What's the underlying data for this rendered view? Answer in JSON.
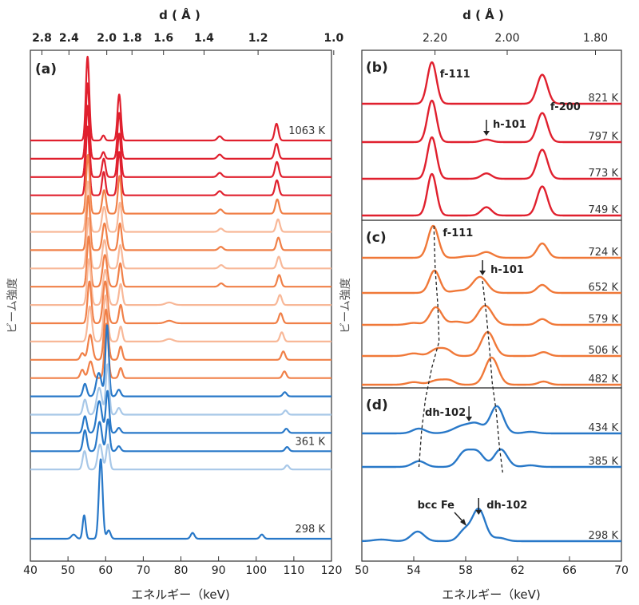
{
  "chart_data": [
    {
      "panel": "(a)",
      "type": "line",
      "xlabel": "エネルギー（keV)",
      "ylabel": "ビーム強度",
      "top_axis_label": "d ( Å )",
      "top_ticks": [
        "2.8",
        "2.4",
        "2.0",
        "1.8",
        "1.6",
        "1.4",
        "1.2",
        "1.0"
      ],
      "top_tick_values": [
        2.8,
        2.4,
        2.0,
        1.8,
        1.6,
        1.4,
        1.2,
        1.0
      ],
      "xlim": [
        40,
        120
      ],
      "x_ticks": [
        40,
        50,
        60,
        70,
        80,
        90,
        100,
        110,
        120
      ],
      "temperature_labels": [
        {
          "text": "1063 K",
          "series_index": 0
        },
        {
          "text": "361 K",
          "series_index": 17
        },
        {
          "text": "298 K",
          "series_index": 19
        }
      ],
      "series": [
        {
          "color": "#e0202e",
          "peaks": [
            [
              55.2,
              1.0,
              0.45
            ],
            [
              59.4,
              0.06,
              0.4
            ],
            [
              63.6,
              0.55,
              0.45
            ],
            [
              90.3,
              0.05,
              0.6
            ],
            [
              105.4,
              0.2,
              0.5
            ]
          ]
        },
        {
          "color": "#e0202e",
          "peaks": [
            [
              55.2,
              0.9,
              0.45
            ],
            [
              59.4,
              0.08,
              0.4
            ],
            [
              63.6,
              0.55,
              0.45
            ],
            [
              90.3,
              0.05,
              0.6
            ],
            [
              105.4,
              0.18,
              0.5
            ]
          ]
        },
        {
          "color": "#e0202e",
          "peaks": [
            [
              55.2,
              0.85,
              0.45
            ],
            [
              59.5,
              0.22,
              0.45
            ],
            [
              63.6,
              0.52,
              0.45
            ],
            [
              90.3,
              0.05,
              0.6
            ],
            [
              105.5,
              0.18,
              0.5
            ]
          ]
        },
        {
          "color": "#e0202e",
          "peaks": [
            [
              55.2,
              0.82,
              0.45
            ],
            [
              59.5,
              0.28,
              0.45
            ],
            [
              63.6,
              0.52,
              0.45
            ],
            [
              90.3,
              0.05,
              0.6
            ],
            [
              105.5,
              0.18,
              0.5
            ]
          ]
        },
        {
          "color": "#f08048",
          "peaks": [
            [
              55.3,
              0.7,
              0.45
            ],
            [
              59.6,
              0.28,
              0.5
            ],
            [
              63.7,
              0.45,
              0.45
            ],
            [
              90.5,
              0.05,
              0.6
            ],
            [
              105.6,
              0.17,
              0.5
            ]
          ]
        },
        {
          "color": "#f8b898",
          "peaks": [
            [
              55.3,
              0.6,
              0.45
            ],
            [
              59.6,
              0.3,
              0.55
            ],
            [
              63.8,
              0.35,
              0.45
            ],
            [
              90.6,
              0.04,
              0.6
            ],
            [
              105.8,
              0.15,
              0.5
            ]
          ]
        },
        {
          "color": "#f08048",
          "peaks": [
            [
              55.4,
              0.65,
              0.45
            ],
            [
              59.7,
              0.32,
              0.55
            ],
            [
              63.8,
              0.32,
              0.45
            ],
            [
              90.6,
              0.04,
              0.6
            ],
            [
              105.9,
              0.15,
              0.5
            ]
          ]
        },
        {
          "color": "#f8b898",
          "peaks": [
            [
              55.4,
              0.6,
              0.45
            ],
            [
              59.7,
              0.34,
              0.55
            ],
            [
              63.9,
              0.28,
              0.45
            ],
            [
              90.7,
              0.04,
              0.6
            ],
            [
              106.0,
              0.14,
              0.5
            ]
          ]
        },
        {
          "color": "#f08048",
          "peaks": [
            [
              55.5,
              0.6,
              0.45
            ],
            [
              59.8,
              0.38,
              0.6
            ],
            [
              63.9,
              0.28,
              0.45
            ],
            [
              90.7,
              0.04,
              0.6
            ],
            [
              106.1,
              0.14,
              0.5
            ]
          ]
        },
        {
          "color": "#f8b898",
          "peaks": [
            [
              55.6,
              0.55,
              0.5
            ],
            [
              59.9,
              0.42,
              0.6
            ],
            [
              64.0,
              0.25,
              0.45
            ],
            [
              76.9,
              0.03,
              1.0
            ],
            [
              106.3,
              0.12,
              0.5
            ]
          ]
        },
        {
          "color": "#f08048",
          "peaks": [
            [
              55.7,
              0.5,
              0.5
            ],
            [
              59.9,
              0.5,
              0.6
            ],
            [
              64.0,
              0.22,
              0.45
            ],
            [
              76.9,
              0.03,
              1.0
            ],
            [
              106.5,
              0.12,
              0.5
            ]
          ]
        },
        {
          "color": "#f8b898",
          "peaks": [
            [
              55.8,
              0.42,
              0.55
            ],
            [
              60.0,
              0.55,
              0.55
            ],
            [
              64.0,
              0.18,
              0.45
            ],
            [
              76.9,
              0.03,
              1.0
            ],
            [
              106.8,
              0.11,
              0.5
            ]
          ]
        },
        {
          "color": "#f08048",
          "peaks": [
            [
              53.8,
              0.08,
              0.5
            ],
            [
              55.9,
              0.3,
              0.6
            ],
            [
              60.1,
              0.6,
              0.55
            ],
            [
              64.0,
              0.16,
              0.45
            ],
            [
              107.2,
              0.1,
              0.5
            ]
          ]
        },
        {
          "color": "#f08048",
          "peaks": [
            [
              53.8,
              0.1,
              0.5
            ],
            [
              56.0,
              0.2,
              0.6
            ],
            [
              60.2,
              0.65,
              0.5
            ],
            [
              64.0,
              0.12,
              0.45
            ],
            [
              107.5,
              0.08,
              0.5
            ]
          ]
        },
        {
          "color": "#2878c8",
          "peaks": [
            [
              54.5,
              0.15,
              0.5
            ],
            [
              58.2,
              0.28,
              0.7
            ],
            [
              60.4,
              0.85,
              0.45
            ],
            [
              63.5,
              0.08,
              0.5
            ],
            [
              107.6,
              0.05,
              0.5
            ]
          ]
        },
        {
          "color": "#a8c8e8",
          "peaks": [
            [
              54.5,
              0.18,
              0.5
            ],
            [
              58.3,
              0.32,
              0.7
            ],
            [
              60.5,
              0.6,
              0.45
            ],
            [
              63.5,
              0.08,
              0.5
            ],
            [
              107.8,
              0.05,
              0.5
            ]
          ]
        },
        {
          "color": "#2878c8",
          "peaks": [
            [
              54.5,
              0.2,
              0.5
            ],
            [
              58.3,
              0.38,
              0.7
            ],
            [
              60.5,
              0.5,
              0.45
            ],
            [
              63.5,
              0.06,
              0.5
            ],
            [
              108.0,
              0.05,
              0.5
            ]
          ]
        },
        {
          "color": "#2878c8",
          "peaks": [
            [
              54.5,
              0.25,
              0.5
            ],
            [
              58.4,
              0.35,
              0.6
            ],
            [
              60.6,
              0.38,
              0.45
            ],
            [
              63.5,
              0.06,
              0.5
            ],
            [
              108.2,
              0.05,
              0.5
            ]
          ]
        },
        {
          "color": "#a8c8e8",
          "peaks": [
            [
              54.4,
              0.22,
              0.5
            ],
            [
              58.5,
              0.3,
              0.6
            ],
            [
              60.6,
              0.3,
              0.45
            ],
            [
              108.2,
              0.05,
              0.5
            ]
          ]
        },
        {
          "color": "#2878c8",
          "peaks": [
            [
              51.5,
              0.05,
              0.6
            ],
            [
              54.3,
              0.28,
              0.4
            ],
            [
              58.7,
              0.95,
              0.5
            ],
            [
              60.8,
              0.1,
              0.5
            ],
            [
              83.1,
              0.07,
              0.5
            ],
            [
              101.5,
              0.05,
              0.5
            ]
          ]
        }
      ]
    },
    {
      "panel": "(b)",
      "type": "line",
      "top_axis_label": "d ( Å )",
      "top_ticks": [
        "2.20",
        "2.00",
        "1.80"
      ],
      "top_tick_values": [
        2.2,
        2.0,
        1.8
      ],
      "xlim": [
        50,
        70
      ],
      "temperatures": [
        "821 K",
        "797 K",
        "773 K",
        "749 K"
      ],
      "annotations": [
        {
          "text": "f-111",
          "x": 55.4
        },
        {
          "text": "f-200",
          "x": 63.9
        },
        {
          "text": "h-101",
          "x": 59.6,
          "arrow": true
        }
      ],
      "series": [
        {
          "color": "#e0202e",
          "peaks": [
            [
              55.4,
              1.0,
              0.35
            ],
            [
              63.9,
              0.7,
              0.4
            ],
            [
              59.6,
              0.0,
              0.4
            ]
          ]
        },
        {
          "color": "#e0202e",
          "peaks": [
            [
              55.4,
              1.0,
              0.35
            ],
            [
              63.9,
              0.7,
              0.4
            ],
            [
              59.6,
              0.06,
              0.4
            ]
          ]
        },
        {
          "color": "#e0202e",
          "peaks": [
            [
              55.4,
              1.0,
              0.35
            ],
            [
              63.9,
              0.7,
              0.4
            ],
            [
              59.6,
              0.13,
              0.4
            ]
          ]
        },
        {
          "color": "#e0202e",
          "peaks": [
            [
              55.4,
              1.0,
              0.35
            ],
            [
              63.9,
              0.7,
              0.4
            ],
            [
              59.6,
              0.2,
              0.4
            ]
          ]
        }
      ]
    },
    {
      "panel": "(c)",
      "type": "line",
      "xlim": [
        50,
        70
      ],
      "temperatures": [
        "724 K",
        "652 K",
        "579 K",
        "506 K",
        "482 K"
      ],
      "annotations": [
        {
          "text": "f-111",
          "x": 55.5
        },
        {
          "text": "h-101",
          "x": 59.3,
          "arrow": true
        }
      ],
      "series": [
        {
          "color": "#f07838",
          "peaks": [
            [
              55.5,
              1.0,
              0.4
            ],
            [
              59.6,
              0.18,
              0.5
            ],
            [
              63.9,
              0.45,
              0.4
            ],
            [
              58.2,
              0.05,
              0.5
            ]
          ]
        },
        {
          "color": "#f07838",
          "peaks": [
            [
              55.6,
              0.7,
              0.4
            ],
            [
              59.1,
              0.5,
              0.55
            ],
            [
              63.9,
              0.25,
              0.4
            ],
            [
              57.5,
              0.07,
              0.6
            ]
          ]
        },
        {
          "color": "#f07838",
          "peaks": [
            [
              55.7,
              0.55,
              0.45
            ],
            [
              59.5,
              0.6,
              0.55
            ],
            [
              63.9,
              0.18,
              0.4
            ],
            [
              57.3,
              0.1,
              0.6
            ],
            [
              54.0,
              0.06,
              0.5
            ]
          ]
        },
        {
          "color": "#f07838",
          "peaks": [
            [
              55.8,
              0.22,
              0.5
            ],
            [
              59.7,
              0.75,
              0.5
            ],
            [
              64.0,
              0.12,
              0.4
            ],
            [
              56.6,
              0.15,
              0.4
            ],
            [
              54.0,
              0.08,
              0.5
            ]
          ]
        },
        {
          "color": "#f07838",
          "peaks": [
            [
              55.9,
              0.15,
              0.6
            ],
            [
              60.0,
              0.85,
              0.5
            ],
            [
              64.0,
              0.1,
              0.4
            ],
            [
              56.8,
              0.1,
              0.4
            ],
            [
              54.0,
              0.08,
              0.5
            ]
          ]
        }
      ]
    },
    {
      "panel": "(d)",
      "type": "line",
      "xlabel": "エネルギー（keV)",
      "ylabel": "ビーム強度",
      "xlim": [
        50,
        70
      ],
      "x_ticks": [
        50,
        54,
        58,
        62,
        66,
        70
      ],
      "temperatures": [
        "434 K",
        "385 K",
        "298 K"
      ],
      "annotations": [
        {
          "text": "dh-102",
          "x": 58.5,
          "arrow": true
        },
        {
          "text": "bcc Fe",
          "x": 58.0,
          "arrow": true
        },
        {
          "text": "dh-102",
          "x": 59.0,
          "arrow": true
        }
      ],
      "series": [
        {
          "color": "#2878c8",
          "peaks": [
            [
              54.4,
              0.15,
              0.5
            ],
            [
              57.9,
              0.25,
              0.8
            ],
            [
              58.9,
              0.2,
              0.5
            ],
            [
              60.4,
              0.85,
              0.5
            ],
            [
              63.0,
              0.05,
              0.5
            ]
          ]
        },
        {
          "color": "#2878c8",
          "peaks": [
            [
              54.4,
              0.18,
              0.5
            ],
            [
              57.9,
              0.45,
              0.5
            ],
            [
              58.9,
              0.45,
              0.5
            ],
            [
              60.7,
              0.55,
              0.5
            ],
            [
              63.0,
              0.05,
              0.5
            ]
          ]
        },
        {
          "color": "#2878c8",
          "peaks": [
            [
              51.5,
              0.05,
              0.6
            ],
            [
              54.3,
              0.3,
              0.5
            ],
            [
              57.9,
              0.32,
              0.45
            ],
            [
              59.0,
              1.0,
              0.5
            ],
            [
              60.6,
              0.1,
              0.5
            ]
          ]
        }
      ]
    }
  ]
}
